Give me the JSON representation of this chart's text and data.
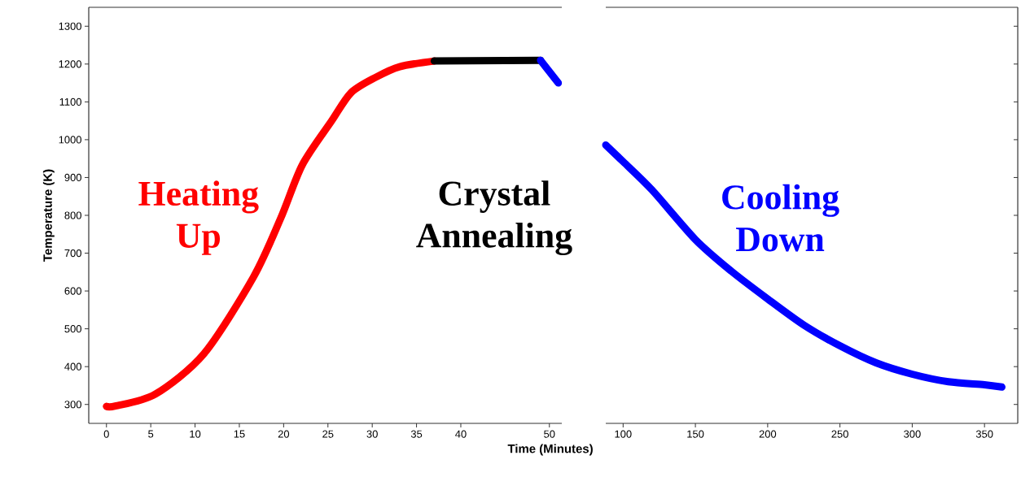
{
  "chart_data": [
    {
      "type": "line",
      "xlabel": "Time (Minutes)",
      "ylabel": "Temperature (K)",
      "xlim": [
        -2,
        51.4
      ],
      "xticks": [
        0,
        5,
        10,
        15,
        20,
        25,
        30,
        35,
        40,
        50
      ],
      "ylim": [
        250,
        1350
      ],
      "yticks": [
        300,
        400,
        500,
        600,
        700,
        800,
        900,
        1000,
        1100,
        1200,
        1300
      ],
      "marker": "none",
      "line_style": "solid",
      "grid": false,
      "annotations": [
        "Heating Up",
        "Crystal Annealing"
      ],
      "series": [
        {
          "color": "#ff0000",
          "x": [
            0,
            1,
            5.5,
            11,
            16.6,
            19.7,
            22.1,
            25.4,
            27.6,
            30.4,
            33.1,
            37
          ],
          "values": [
            295,
            296,
            327,
            434,
            637,
            794,
            933,
            1049,
            1124,
            1165,
            1193,
            1208
          ]
        },
        {
          "color": "#000000",
          "x": [
            37,
            49
          ],
          "values": [
            1208,
            1210
          ]
        },
        {
          "color": "#0000ff",
          "x": [
            49,
            51
          ],
          "values": [
            1210,
            1150
          ]
        }
      ]
    },
    {
      "type": "line",
      "tick_labels": "x",
      "xlim": [
        88,
        373
      ],
      "xticks": [
        100,
        150,
        200,
        250,
        300,
        350
      ],
      "ylim": [
        250,
        1350
      ],
      "yticks": [
        300,
        400,
        500,
        600,
        700,
        800,
        900,
        1000,
        1100,
        1200,
        1300
      ],
      "marker": "none",
      "line_style": "solid",
      "grid": false,
      "annotations": [
        "Cooling Down"
      ],
      "series": [
        {
          "color": "#0000ff",
          "x": [
            88,
            100,
            120,
            150,
            175,
            200,
            225,
            250,
            275,
            300,
            325,
            350,
            362
          ],
          "values": [
            986,
            942,
            867,
            736,
            652,
            579,
            510,
            455,
            410,
            380,
            360,
            352,
            346
          ]
        }
      ]
    }
  ]
}
